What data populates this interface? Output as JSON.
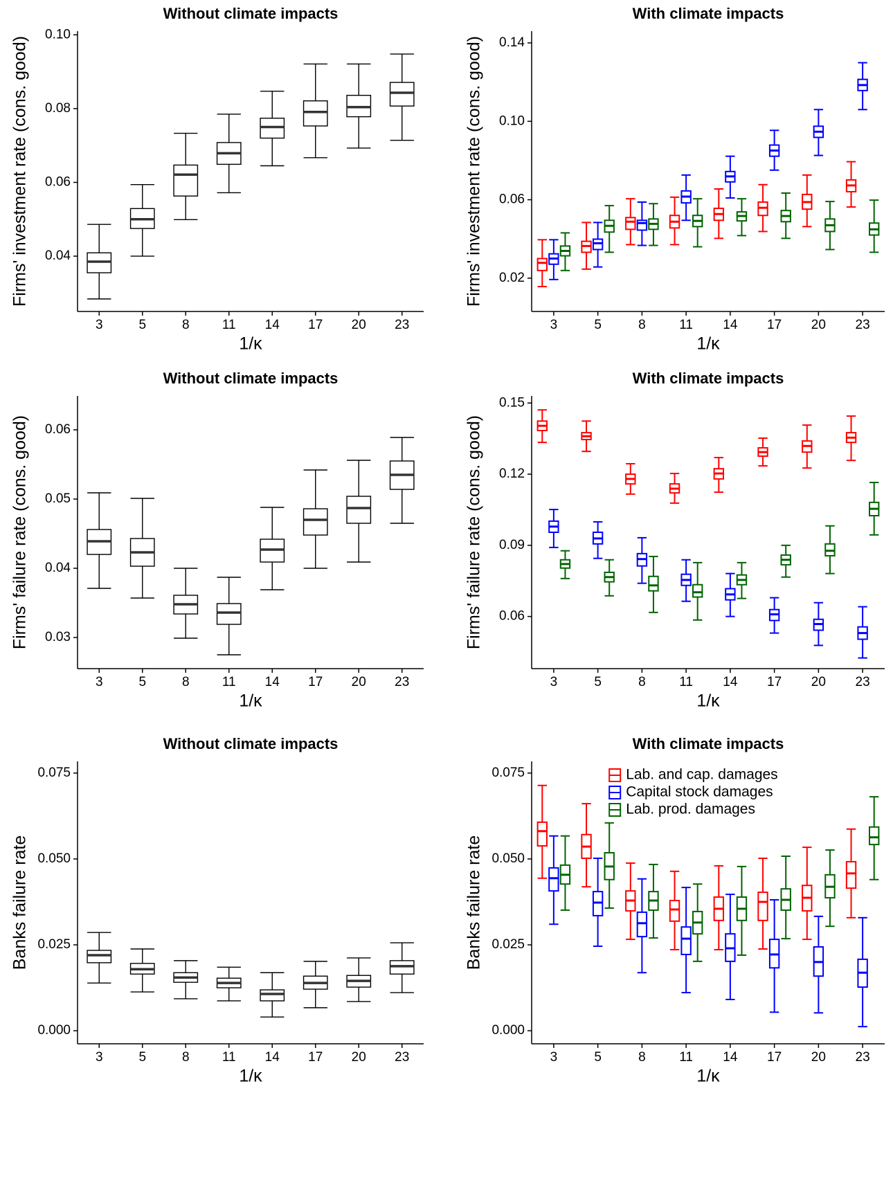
{
  "chart_data": [
    {
      "type": "box",
      "title": "Without climate impacts",
      "x_label": "1/κ",
      "y_label": "Firms' investment rate (cons. good)",
      "categories": [
        "3",
        "5",
        "8",
        "11",
        "14",
        "17",
        "20",
        "23"
      ],
      "ylim": [
        0.025,
        0.101
      ],
      "yticks": [
        0.04,
        0.06,
        0.08,
        {
          "value": 0.1,
          "label": "0.10"
        }
      ],
      "series": [
        {
          "color": "#000000",
          "min": [
            0.0284,
            0.04,
            0.0499,
            0.0572,
            0.0645,
            0.0667,
            0.0693,
            0.0714
          ],
          "q1": [
            0.0355,
            0.0475,
            0.0563,
            0.0649,
            0.072,
            0.0753,
            0.0778,
            0.0807
          ],
          "median": [
            0.0385,
            0.05,
            0.0621,
            0.0679,
            0.075,
            0.0791,
            0.0804,
            0.0843
          ],
          "q3": [
            0.0409,
            0.0529,
            0.0647,
            0.0708,
            0.0774,
            0.0821,
            0.0836,
            0.0871
          ],
          "max": [
            0.0486,
            0.0594,
            0.0733,
            0.0785,
            0.0847,
            0.0921,
            0.0921,
            0.0948
          ]
        }
      ]
    },
    {
      "type": "box",
      "title": "With climate impacts",
      "x_label": "1/κ",
      "y_label": "Firms' investment rate (cons. good)",
      "categories": [
        "3",
        "5",
        "8",
        "11",
        "14",
        "17",
        "20",
        "23"
      ],
      "ylim": [
        0.003,
        0.146
      ],
      "yticks": [
        0.02,
        0.06,
        {
          "value": 0.1,
          "label": "0.10"
        },
        0.14
      ],
      "series": [
        {
          "color": "#ff0000",
          "min": [
            0.0157,
            0.0246,
            0.0371,
            0.0371,
            0.0403,
            0.0438,
            0.0463,
            0.0563
          ],
          "q1": [
            0.0239,
            0.0332,
            0.0449,
            0.0456,
            0.0495,
            0.052,
            0.0552,
            0.0641
          ],
          "median": [
            0.0278,
            0.0364,
            0.0488,
            0.0488,
            0.0527,
            0.0559,
            0.0588,
            0.0673
          ],
          "q3": [
            0.03,
            0.0388,
            0.0509,
            0.052,
            0.0556,
            0.0588,
            0.0627,
            0.0701
          ],
          "max": [
            0.0396,
            0.0484,
            0.0605,
            0.0613,
            0.0655,
            0.0677,
            0.0726,
            0.0794
          ]
        },
        {
          "color": "#0000ff",
          "min": [
            0.0193,
            0.0257,
            0.0367,
            0.0495,
            0.0609,
            0.0751,
            0.0826,
            0.106
          ],
          "q1": [
            0.0271,
            0.0346,
            0.0445,
            0.0584,
            0.0691,
            0.0822,
            0.0918,
            0.1157
          ],
          "median": [
            0.03,
            0.0378,
            0.0481,
            0.0616,
            0.0719,
            0.0851,
            0.0947,
            0.1185
          ],
          "q3": [
            0.0324,
            0.0399,
            0.0495,
            0.0645,
            0.0744,
            0.0879,
            0.0975,
            0.1214
          ],
          "max": [
            0.0396,
            0.0484,
            0.0588,
            0.0726,
            0.0822,
            0.0954,
            0.106,
            0.1299
          ]
        },
        {
          "color": "#006400",
          "min": [
            0.0239,
            0.0332,
            0.0367,
            0.036,
            0.0417,
            0.0403,
            0.0346,
            0.0332
          ],
          "q1": [
            0.0314,
            0.0435,
            0.0449,
            0.0463,
            0.0492,
            0.0488,
            0.0438,
            0.042
          ],
          "median": [
            0.0339,
            0.0467,
            0.0477,
            0.0492,
            0.0517,
            0.0517,
            0.047,
            0.0449
          ],
          "q3": [
            0.0364,
            0.0495,
            0.0502,
            0.052,
            0.0538,
            0.0545,
            0.0502,
            0.0481
          ],
          "max": [
            0.0431,
            0.057,
            0.058,
            0.0605,
            0.0605,
            0.0634,
            0.0591,
            0.0598
          ]
        }
      ]
    },
    {
      "type": "box",
      "title": "Without climate impacts",
      "x_label": "1/κ",
      "y_label": "Firms' failure rate (cons. good)",
      "categories": [
        "3",
        "5",
        "8",
        "11",
        "14",
        "17",
        "20",
        "23"
      ],
      "ylim": [
        0.0255,
        0.0649
      ],
      "yticks": [
        0.03,
        0.04,
        0.05,
        0.06
      ],
      "series": [
        {
          "color": "#000000",
          "min": [
            0.0371,
            0.0357,
            0.0299,
            0.0275,
            0.0369,
            0.04,
            0.0409,
            0.0465
          ],
          "q1": [
            0.042,
            0.0403,
            0.0334,
            0.0319,
            0.0409,
            0.0448,
            0.0465,
            0.0514
          ],
          "median": [
            0.0439,
            0.0423,
            0.0348,
            0.0336,
            0.0427,
            0.047,
            0.0487,
            0.0535
          ],
          "q3": [
            0.0456,
            0.0443,
            0.0361,
            0.0349,
            0.0442,
            0.0486,
            0.0504,
            0.0555
          ],
          "max": [
            0.0509,
            0.0501,
            0.04,
            0.0387,
            0.0488,
            0.0542,
            0.0556,
            0.0589
          ]
        }
      ]
    },
    {
      "type": "box",
      "title": "With climate impacts",
      "x_label": "1/κ",
      "y_label": "Firms' failure rate (cons. good)",
      "categories": [
        "3",
        "5",
        "8",
        "11",
        "14",
        "17",
        "20",
        "23"
      ],
      "ylim": [
        0.038,
        0.153
      ],
      "yticks": [
        0.06,
        0.09,
        0.12,
        0.15
      ],
      "series": [
        {
          "color": "#ff0000",
          "min": [
            0.1334,
            0.1296,
            0.1116,
            0.1078,
            0.1124,
            0.1235,
            0.1226,
            0.1258
          ],
          "q1": [
            0.1384,
            0.1346,
            0.1159,
            0.1121,
            0.118,
            0.1276,
            0.1293,
            0.1334
          ],
          "median": [
            0.1404,
            0.136,
            0.118,
            0.1139,
            0.1203,
            0.1293,
            0.1319,
            0.1354
          ],
          "q3": [
            0.1424,
            0.1375,
            0.12,
            0.1159,
            0.1223,
            0.1311,
            0.134,
            0.1375
          ],
          "max": [
            0.1471,
            0.1424,
            0.1244,
            0.1203,
            0.127,
            0.1352,
            0.1407,
            0.1445
          ]
        },
        {
          "color": "#0000ff",
          "min": [
            0.0891,
            0.0845,
            0.074,
            0.0664,
            0.06,
            0.053,
            0.0478,
            0.0425
          ],
          "q1": [
            0.0955,
            0.0906,
            0.0813,
            0.0731,
            0.067,
            0.0583,
            0.0542,
            0.0504
          ],
          "median": [
            0.0979,
            0.0929,
            0.0842,
            0.0754,
            0.0693,
            0.0609,
            0.0568,
            0.053
          ],
          "q3": [
            0.1002,
            0.0955,
            0.0865,
            0.0778,
            0.0717,
            0.0629,
            0.0588,
            0.0556
          ],
          "max": [
            0.1051,
            0.0999,
            0.0932,
            0.0839,
            0.0781,
            0.0679,
            0.0658,
            0.0641
          ]
        },
        {
          "color": "#006400",
          "min": [
            0.076,
            0.0687,
            0.0617,
            0.0585,
            0.0676,
            0.0766,
            0.0781,
            0.0944
          ],
          "q1": [
            0.0804,
            0.0746,
            0.0708,
            0.0682,
            0.0734,
            0.0818,
            0.0856,
            0.1025
          ],
          "median": [
            0.0821,
            0.0766,
            0.0731,
            0.0702,
            0.0754,
            0.0839,
            0.0877,
            0.1054
          ],
          "q3": [
            0.0839,
            0.0786,
            0.0769,
            0.0734,
            0.0775,
            0.0859,
            0.0906,
            0.1081
          ],
          "max": [
            0.0877,
            0.0839,
            0.0853,
            0.0827,
            0.0827,
            0.09,
            0.0982,
            0.1165
          ]
        }
      ]
    },
    {
      "type": "box",
      "title": "Without climate impacts",
      "x_label": "1/κ",
      "y_label": "Banks failure rate",
      "categories": [
        "3",
        "5",
        "8",
        "11",
        "14",
        "17",
        "20",
        "23"
      ],
      "ylim": [
        -0.0038,
        0.0784
      ],
      "yticks": [
        {
          "value": 0,
          "label": "0.000"
        },
        0.025,
        {
          "value": 0.05,
          "label": "0.050"
        },
        0.075
      ],
      "series": [
        {
          "color": "#000000",
          "min": [
            0.0139,
            0.0113,
            0.0093,
            0.0087,
            0.004,
            0.0067,
            0.0085,
            0.0111
          ],
          "q1": [
            0.0198,
            0.0165,
            0.0141,
            0.0125,
            0.0087,
            0.0121,
            0.0127,
            0.0165
          ],
          "median": [
            0.022,
            0.0179,
            0.0155,
            0.0139,
            0.0107,
            0.0139,
            0.0145,
            0.0188
          ],
          "q3": [
            0.0234,
            0.0196,
            0.0169,
            0.0153,
            0.0119,
            0.0159,
            0.0161,
            0.0204
          ],
          "max": [
            0.0286,
            0.0238,
            0.0204,
            0.0185,
            0.0169,
            0.0202,
            0.0212,
            0.0256
          ]
        }
      ]
    },
    {
      "type": "box",
      "title": "With climate impacts",
      "x_label": "1/κ",
      "y_label": "Banks failure rate",
      "categories": [
        "3",
        "5",
        "8",
        "11",
        "14",
        "17",
        "20",
        "23"
      ],
      "ylim": [
        -0.0038,
        0.0784
      ],
      "yticks": [
        {
          "value": 0,
          "label": "0.000"
        },
        0.025,
        {
          "value": 0.05,
          "label": "0.050"
        },
        0.075
      ],
      "legend": "top",
      "series": [
        {
          "name": "Lab. and cap. damages",
          "color": "#ff0000",
          "min": [
            0.0444,
            0.0419,
            0.0266,
            0.0236,
            0.0236,
            0.0238,
            0.0266,
            0.0329
          ],
          "q1": [
            0.0538,
            0.0502,
            0.0349,
            0.0319,
            0.0321,
            0.0321,
            0.0349,
            0.0415
          ],
          "median": [
            0.0581,
            0.0536,
            0.0379,
            0.0353,
            0.0355,
            0.0375,
            0.0387,
            0.0458
          ],
          "q3": [
            0.0607,
            0.0571,
            0.0407,
            0.0379,
            0.0389,
            0.0403,
            0.0423,
            0.0492
          ],
          "max": [
            0.0714,
            0.0661,
            0.0488,
            0.0464,
            0.048,
            0.0502,
            0.0534,
            0.0587
          ]
        },
        {
          "name": "Capital stock damages",
          "color": "#0000ff",
          "min": [
            0.031,
            0.0246,
            0.0169,
            0.0111,
            0.0091,
            0.0054,
            0.0052,
            0.0012
          ],
          "q1": [
            0.0407,
            0.0335,
            0.0274,
            0.0222,
            0.0202,
            0.0183,
            0.0159,
            0.0127
          ],
          "median": [
            0.0444,
            0.0373,
            0.0313,
            0.0268,
            0.024,
            0.0222,
            0.02,
            0.0169
          ],
          "q3": [
            0.0474,
            0.0405,
            0.0345,
            0.0302,
            0.0282,
            0.0266,
            0.0244,
            0.0208
          ],
          "max": [
            0.0567,
            0.0502,
            0.0442,
            0.0417,
            0.0397,
            0.0381,
            0.0333,
            0.0329
          ]
        },
        {
          "name": "Lab. prod. damages",
          "color": "#006400",
          "min": [
            0.0351,
            0.0357,
            0.027,
            0.0202,
            0.022,
            0.0268,
            0.0304,
            0.044
          ],
          "q1": [
            0.0427,
            0.044,
            0.0351,
            0.0282,
            0.0321,
            0.0351,
            0.0387,
            0.0542
          ],
          "median": [
            0.0454,
            0.0478,
            0.0379,
            0.0315,
            0.0355,
            0.0381,
            0.0419,
            0.0563
          ],
          "q3": [
            0.0482,
            0.0518,
            0.0405,
            0.0347,
            0.0389,
            0.0413,
            0.0454,
            0.0593
          ],
          "max": [
            0.0567,
            0.0605,
            0.0484,
            0.0427,
            0.0478,
            0.0508,
            0.0526,
            0.0681
          ]
        }
      ]
    }
  ]
}
